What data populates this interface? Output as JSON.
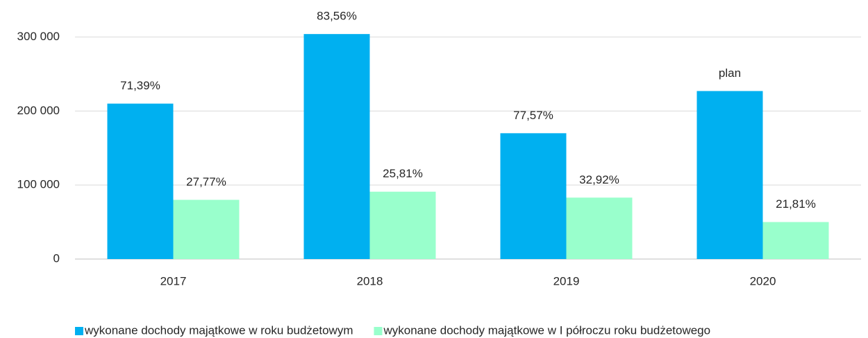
{
  "chart_data": {
    "type": "bar",
    "categories": [
      "2017",
      "2018",
      "2019",
      "2020"
    ],
    "series": [
      {
        "name": "wykonane dochody majątkowe w roku budżetowym",
        "color": "#00b0f0",
        "values": [
          210000,
          304000,
          170000,
          227000
        ],
        "bar_labels": [
          "71,39%",
          "83,56%",
          "77,57%",
          "plan"
        ]
      },
      {
        "name": "wykonane dochody majątkowe w I półroczu roku budżetowego",
        "color": "#99ffcc",
        "values": [
          80000,
          91000,
          83000,
          50000
        ],
        "bar_labels": [
          "27,77%",
          "25,81%",
          "32,92%",
          "21,81%"
        ]
      }
    ],
    "ylim": [
      0,
      350000
    ],
    "yticks": [
      0,
      {
        "value": 100000,
        "label": "100 000"
      },
      {
        "value": 200000,
        "label": "200 000"
      },
      {
        "value": 300000,
        "label": "300 000"
      }
    ],
    "grid": true,
    "legend": "bottom"
  }
}
